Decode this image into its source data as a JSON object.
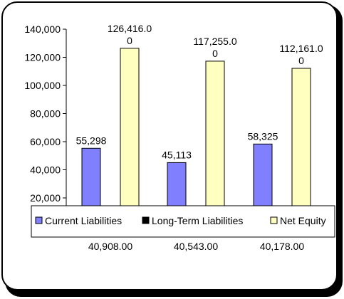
{
  "chart_data": {
    "type": "bar",
    "categories": [
      "40,908.00",
      "40,543.00",
      "40,178.00"
    ],
    "series": [
      {
        "name": "Current Liabilities",
        "color": "#8080FF",
        "values": [
          55298,
          45113,
          58325
        ],
        "labels": [
          "55,298",
          "45,113",
          "58,325"
        ]
      },
      {
        "name": "Long-Term Liabilities",
        "color": "#000000",
        "values": [
          0,
          0,
          0
        ],
        "labels": [
          "",
          "",
          ""
        ]
      },
      {
        "name": "Net Equity",
        "color": "#FFFFC0",
        "values": [
          126416,
          117255,
          112161
        ],
        "labels": [
          "126,416.0\n0",
          "117,255.0\n0",
          "112,161.0\n0"
        ]
      }
    ],
    "y_ticks": [
      "20,000",
      "40,000",
      "60,000",
      "80,000",
      "100,000",
      "120,000",
      "140,000"
    ],
    "ylim": [
      0,
      140000
    ],
    "legend_position": "bottom"
  }
}
